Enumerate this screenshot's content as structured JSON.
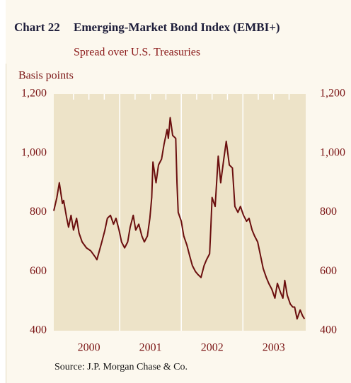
{
  "chart_data": {
    "type": "line",
    "chart_label": "Chart 22",
    "title": "Emerging-Market Bond Index (EMBI+)",
    "subtitle": "Spread over U.S. Treasuries",
    "y_label": "Basis points",
    "source": "Source: J.P. Morgan Chase & Co.",
    "x": [
      1999.93,
      1999.98,
      2000.02,
      2000.07,
      2000.09,
      2000.14,
      2000.17,
      2000.21,
      2000.25,
      2000.3,
      2000.34,
      2000.39,
      2000.46,
      2000.53,
      2000.6,
      2000.63,
      2000.67,
      2000.71,
      2000.76,
      2000.8,
      2000.85,
      2000.9,
      2000.94,
      2000.99,
      2001.03,
      2001.08,
      2001.13,
      2001.17,
      2001.22,
      2001.26,
      2001.31,
      2001.36,
      2001.4,
      2001.45,
      2001.49,
      2001.52,
      2001.54,
      2001.59,
      2001.63,
      2001.68,
      2001.72,
      2001.77,
      2001.79,
      2001.82,
      2001.86,
      2001.91,
      2001.93,
      2001.95,
      2002.0,
      2002.04,
      2002.09,
      2002.14,
      2002.18,
      2002.23,
      2002.27,
      2002.32,
      2002.37,
      2002.41,
      2002.46,
      2002.48,
      2002.5,
      2002.55,
      2002.6,
      2002.64,
      2002.69,
      2002.73,
      2002.78,
      2002.83,
      2002.87,
      2002.92,
      2002.96,
      2003.01,
      2003.06,
      2003.1,
      2003.15,
      2003.19,
      2003.24,
      2003.29,
      2003.33,
      2003.38,
      2003.42,
      2003.47,
      2003.52,
      2003.56,
      2003.61,
      2003.65,
      2003.68,
      2003.72,
      2003.77,
      2003.81,
      2003.84,
      2003.88,
      2003.93,
      2003.97,
      2004.0
    ],
    "series": [
      {
        "name": "EMBI+ spread",
        "color": "#6b0f0f",
        "values": [
          805,
          850,
          900,
          830,
          840,
          780,
          750,
          790,
          740,
          780,
          730,
          700,
          680,
          670,
          650,
          640,
          670,
          700,
          740,
          780,
          790,
          760,
          780,
          740,
          700,
          680,
          700,
          750,
          790,
          740,
          760,
          720,
          700,
          720,
          780,
          850,
          970,
          900,
          960,
          980,
          1030,
          1080,
          1050,
          1120,
          1060,
          1050,
          900,
          800,
          770,
          720,
          690,
          650,
          620,
          600,
          590,
          580,
          620,
          640,
          660,
          750,
          850,
          820,
          990,
          900,
          980,
          1040,
          960,
          950,
          820,
          800,
          820,
          790,
          770,
          780,
          740,
          720,
          700,
          650,
          610,
          580,
          560,
          540,
          510,
          560,
          530,
          510,
          570,
          520,
          490,
          480,
          480,
          440,
          470,
          450,
          440
        ]
      }
    ],
    "xlim": [
      1999.93,
      2004.02
    ],
    "xticks": [
      {
        "value": 2000.5,
        "label": "2000"
      },
      {
        "value": 2001.5,
        "label": "2001"
      },
      {
        "value": 2002.5,
        "label": "2002"
      },
      {
        "value": 2003.5,
        "label": "2003"
      }
    ],
    "ylim": [
      400,
      1200
    ],
    "yticks": [
      {
        "value": 400,
        "label": "400"
      },
      {
        "value": 600,
        "label": "600"
      },
      {
        "value": 800,
        "label": "800"
      },
      {
        "value": 1000,
        "label": "1,000"
      },
      {
        "value": 1200,
        "label": "1,200"
      }
    ],
    "right_axis": true
  }
}
